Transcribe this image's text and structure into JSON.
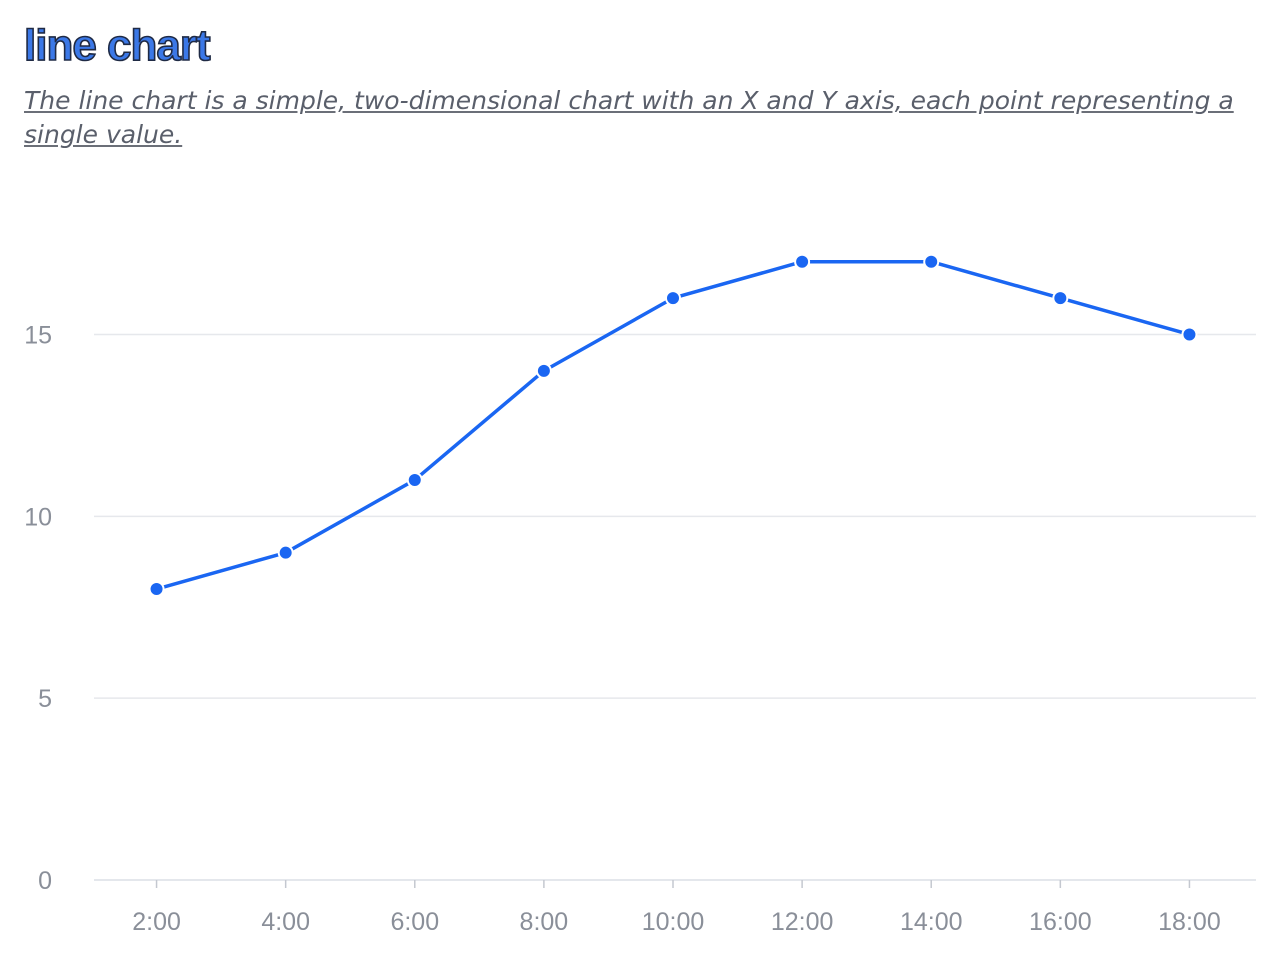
{
  "title": "line chart",
  "subtitle": "The line chart is a simple, two-dimensional chart with an X and Y axis, each point representing a single value.",
  "colors": {
    "series": "#1a66f2",
    "title_fill": "#3b78e7",
    "title_stroke": "#1f2a44",
    "axis_label": "#8a8f99",
    "grid": "#e6e8ec"
  },
  "chart_data": {
    "type": "line",
    "title": "line chart",
    "x": [
      "2:00",
      "4:00",
      "6:00",
      "8:00",
      "10:00",
      "12:00",
      "14:00",
      "16:00",
      "18:00"
    ],
    "series": [
      {
        "values": [
          8,
          9,
          11,
          14,
          16,
          17,
          17,
          16,
          15
        ]
      }
    ],
    "y_ticks": [
      0,
      5,
      10,
      15
    ],
    "ylim": [
      0,
      19
    ],
    "xlabel": "",
    "ylabel": "",
    "grid": true,
    "markers": true
  }
}
